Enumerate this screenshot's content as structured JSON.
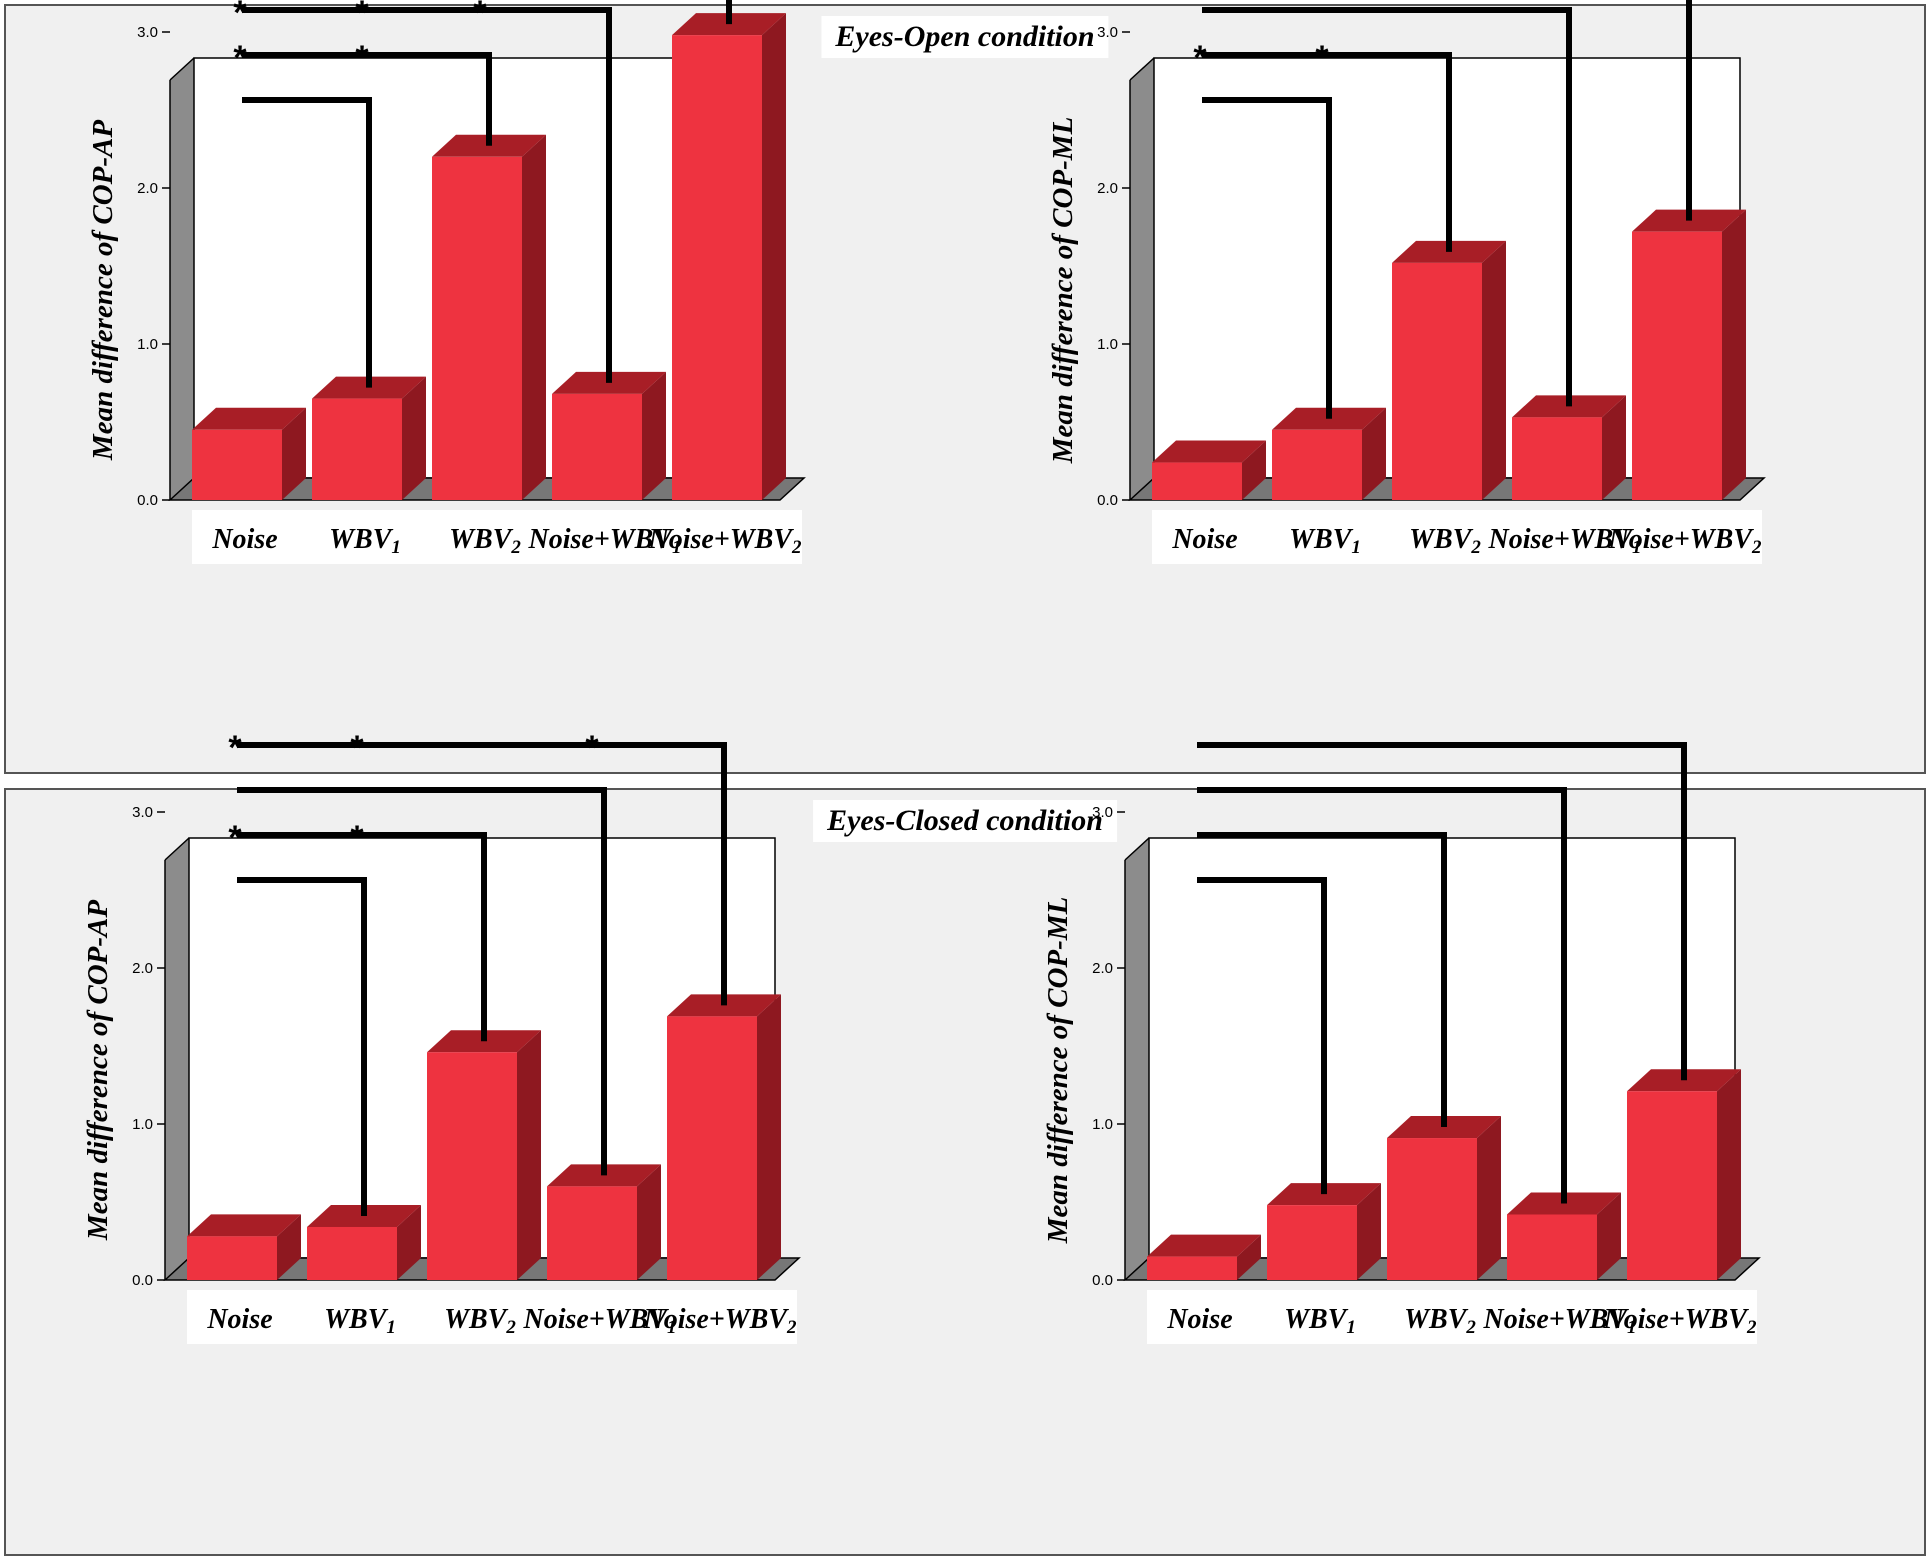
{
  "panels": [
    {
      "title": "Eyes-Open condition"
    },
    {
      "title": "Eyes-Closed condition"
    }
  ],
  "colors": {
    "bar_front": "#ee3340",
    "bar_top": "#a81e26",
    "bar_side": "#8e1820",
    "floor": "#777777",
    "back_wall": "#ffffff",
    "side_wall": "#8c8c8c",
    "bracket": "#000000"
  },
  "chart_data": [
    {
      "type": "bar",
      "panel": "Eyes-Open condition",
      "ylabel": "Mean difference of  COP-AP",
      "ylim": [
        0,
        3.0
      ],
      "yticks": [
        "0.0",
        "1.0",
        "2.0",
        "3.0"
      ],
      "categories": [
        {
          "base": "Noise",
          "sub": ""
        },
        {
          "base": "WBV",
          "sub": "1"
        },
        {
          "base": "WBV",
          "sub": "2"
        },
        {
          "base": "Noise+WBV",
          "sub": "1"
        },
        {
          "base": "Noise+WBV",
          "sub": "2"
        }
      ],
      "values": [
        0.45,
        0.65,
        2.2,
        0.68,
        2.98
      ],
      "comparisons": [
        {
          "from": "Noise",
          "to": "WBV1",
          "significant": false
        },
        {
          "from": "Noise",
          "to": "WBV2",
          "significant": true
        },
        {
          "from": "Noise",
          "to": "Noise+WBV1",
          "significant": true
        },
        {
          "from": "Noise",
          "to": "Noise+WBV2",
          "significant": true
        }
      ]
    },
    {
      "type": "bar",
      "panel": "Eyes-Open condition",
      "ylabel": "Mean difference of  COP-ML",
      "ylim": [
        0,
        3.0
      ],
      "yticks": [
        "0.0",
        "1.0",
        "2.0",
        "3.0"
      ],
      "categories": [
        {
          "base": "Noise",
          "sub": ""
        },
        {
          "base": "WBV",
          "sub": "1"
        },
        {
          "base": "WBV",
          "sub": "2"
        },
        {
          "base": "Noise+WBV",
          "sub": "1"
        },
        {
          "base": "Noise+WBV",
          "sub": "2"
        }
      ],
      "values": [
        0.24,
        0.45,
        1.52,
        0.53,
        1.72
      ],
      "comparisons": [
        {
          "from": "Noise",
          "to": "WBV1",
          "significant": false
        },
        {
          "from": "Noise",
          "to": "WBV2",
          "significant": true
        },
        {
          "from": "Noise",
          "to": "Noise+WBV1",
          "significant": false
        },
        {
          "from": "Noise",
          "to": "Noise+WBV2",
          "significant": true
        }
      ]
    },
    {
      "type": "bar",
      "panel": "Eyes-Closed condition",
      "ylabel": "Mean difference of  COP-AP",
      "ylim": [
        0,
        3.0
      ],
      "yticks": [
        "0.0",
        "1.0",
        "2.0",
        "3.0"
      ],
      "categories": [
        {
          "base": "Noise",
          "sub": ""
        },
        {
          "base": "WBV",
          "sub": "1"
        },
        {
          "base": "WBV",
          "sub": "2"
        },
        {
          "base": "Noise+WBV",
          "sub": "1"
        },
        {
          "base": "Noise+WBV",
          "sub": "2"
        }
      ],
      "values": [
        0.28,
        0.34,
        1.46,
        0.6,
        1.69
      ],
      "comparisons": [
        {
          "from": "Noise",
          "to": "WBV1",
          "significant": false
        },
        {
          "from": "Noise",
          "to": "WBV2",
          "significant": true
        },
        {
          "from": "Noise",
          "to": "Noise+WBV1",
          "significant": false
        },
        {
          "from": "Noise",
          "to": "Noise+WBV2",
          "significant": true
        }
      ]
    },
    {
      "type": "bar",
      "panel": "Eyes-Closed condition",
      "ylabel": "Mean difference of  COP-ML",
      "ylim": [
        0,
        3.0
      ],
      "yticks": [
        "0.0",
        "1.0",
        "2.0",
        "3.0"
      ],
      "categories": [
        {
          "base": "Noise",
          "sub": ""
        },
        {
          "base": "WBV",
          "sub": "1"
        },
        {
          "base": "WBV",
          "sub": "2"
        },
        {
          "base": "Noise+WBV",
          "sub": "1"
        },
        {
          "base": "Noise+WBV",
          "sub": "2"
        }
      ],
      "values": [
        0.15,
        0.48,
        0.91,
        0.42,
        1.21
      ],
      "comparisons": [
        {
          "from": "Noise",
          "to": "WBV1",
          "significant": false
        },
        {
          "from": "Noise",
          "to": "WBV2",
          "significant": false
        },
        {
          "from": "Noise",
          "to": "Noise+WBV1",
          "significant": false
        },
        {
          "from": "Noise",
          "to": "Noise+WBV2",
          "significant": false
        }
      ]
    }
  ]
}
